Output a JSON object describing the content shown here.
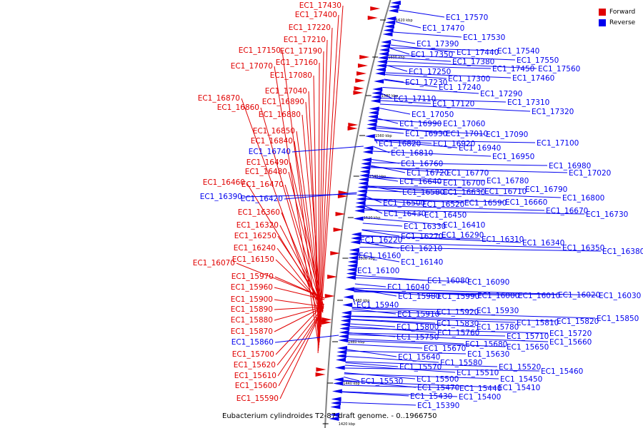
{
  "caption": "Eubacterium cylindroides T2-87 draft genome. - 0..1966750",
  "legend": [
    {
      "label": "Forward",
      "color": "#e00000"
    },
    {
      "label": "Reverse",
      "color": "#0000ee"
    }
  ],
  "colors": {
    "forward": "#e00000",
    "reverse": "#0000ee",
    "backbone": "#808080"
  },
  "ticks": [
    "1620 kbp",
    "1600 kbp",
    "1580 kbp",
    "1560 kbp",
    "1540 kbp",
    "1520 kbp",
    "1500 kbp",
    "1480 kbp",
    "1460 kbp",
    "1440 kbp",
    "1420 kbp"
  ],
  "forward_labels": [
    "EC1_17430",
    "EC1_17400",
    "EC1_17220",
    "EC1_17210",
    "EC1_17150",
    "EC1_17190",
    "EC1_17160",
    "EC1_17070",
    "EC1_17080",
    "EC1_17040",
    "EC1_16870",
    "EC1_16890",
    "EC1_16860",
    "EC1_16880",
    "EC1_16850",
    "EC1_16840",
    "EC1_16490",
    "EC1_16480",
    "EC1_16460",
    "EC1_16470",
    "EC1_16360",
    "EC1_16320",
    "EC1_16250",
    "EC1_16240",
    "EC1_16150",
    "EC1_16070",
    "EC1_15970",
    "EC1_15960",
    "EC1_15900",
    "EC1_15890",
    "EC1_15880",
    "EC1_15870",
    "EC1_15700",
    "EC1_15620",
    "EC1_15610",
    "EC1_15600",
    "EC1_15590"
  ],
  "reverse_left_labels": [
    "EC1_16740",
    "EC1_16390",
    "EC1_16420",
    "EC1_15860"
  ],
  "reverse_labels": [
    "EC1_17570",
    "EC1_17470",
    "EC1_17530",
    "EC1_17390",
    "EC1_17540",
    "EC1_17440",
    "EC1_17350",
    "EC1_17550",
    "EC1_17380",
    "EC1_17450",
    "EC1_17560",
    "EC1_17250",
    "EC1_17460",
    "EC1_17300",
    "EC1_17230",
    "EC1_17240",
    "EC1_17290",
    "EC1_17110",
    "EC1_17310",
    "EC1_17120",
    "EC1_17320",
    "EC1_17050",
    "EC1_16990",
    "EC1_17060",
    "EC1_16930",
    "EC1_17010",
    "EC1_17090",
    "EC1_16820",
    "EC1_16920",
    "EC1_17100",
    "EC1_16940",
    "EC1_16810",
    "EC1_16950",
    "EC1_16760",
    "EC1_16980",
    "EC1_16720",
    "EC1_16770",
    "EC1_17020",
    "EC1_16640",
    "EC1_16780",
    "EC1_16700",
    "EC1_16580",
    "EC1_16630",
    "EC1_16710",
    "EC1_16790",
    "EC1_16800",
    "EC1_16500",
    "EC1_16520",
    "EC1_16590",
    "EC1_16660",
    "EC1_16430",
    "EC1_16450",
    "EC1_16670",
    "EC1_16730",
    "EC1_16330",
    "EC1_16410",
    "EC1_16270",
    "EC1_16290",
    "EC1_16220",
    "EC1_16310",
    "EC1_16340",
    "EC1_16210",
    "EC1_16350",
    "EC1_16380",
    "EC1_16160",
    "EC1_16140",
    "EC1_16100",
    "EC1_16080",
    "EC1_16090",
    "EC1_16040",
    "EC1_15980",
    "EC1_15990",
    "EC1_16000",
    "EC1_16010",
    "EC1_16020",
    "EC1_16030",
    "EC1_15940",
    "EC1_15910",
    "EC1_15920",
    "EC1_15930",
    "EC1_15850",
    "EC1_15810",
    "EC1_15820",
    "EC1_15830",
    "EC1_15800",
    "EC1_15780",
    "EC1_15760",
    "EC1_15720",
    "EC1_15750",
    "EC1_15710",
    "EC1_15660",
    "EC1_15650",
    "EC1_15680",
    "EC1_15670",
    "EC1_15630",
    "EC1_15640",
    "EC1_15580",
    "EC1_15520",
    "EC1_15570",
    "EC1_15460",
    "EC1_15510",
    "EC1_15500",
    "EC1_15450",
    "EC1_15530",
    "EC1_15440",
    "EC1_15470",
    "EC1_15410",
    "EC1_15400",
    "EC1_15430",
    "EC1_15390"
  ]
}
